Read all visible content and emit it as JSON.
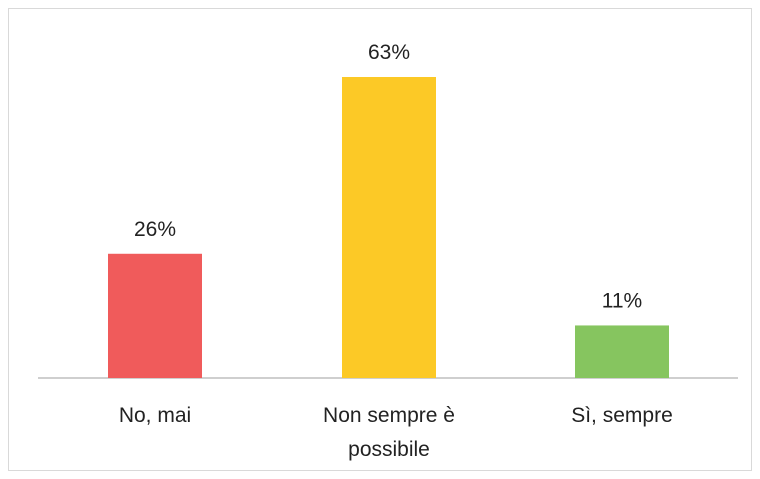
{
  "chart_data": {
    "type": "bar",
    "categories": [
      "No, mai",
      "Non sempre è possibile",
      "Sì, sempre"
    ],
    "category_lines": [
      [
        "No, mai"
      ],
      [
        "Non sempre è",
        "possibile"
      ],
      [
        "Sì, sempre"
      ]
    ],
    "values": [
      26,
      63,
      11
    ],
    "data_labels": [
      "26%",
      "63%",
      "11%"
    ],
    "colors": [
      "#f05b5b",
      "#fcc926",
      "#86c55f"
    ],
    "title": "",
    "xlabel": "",
    "ylabel": "",
    "ylim": [
      0,
      63
    ],
    "grid": false,
    "legend": "none"
  }
}
